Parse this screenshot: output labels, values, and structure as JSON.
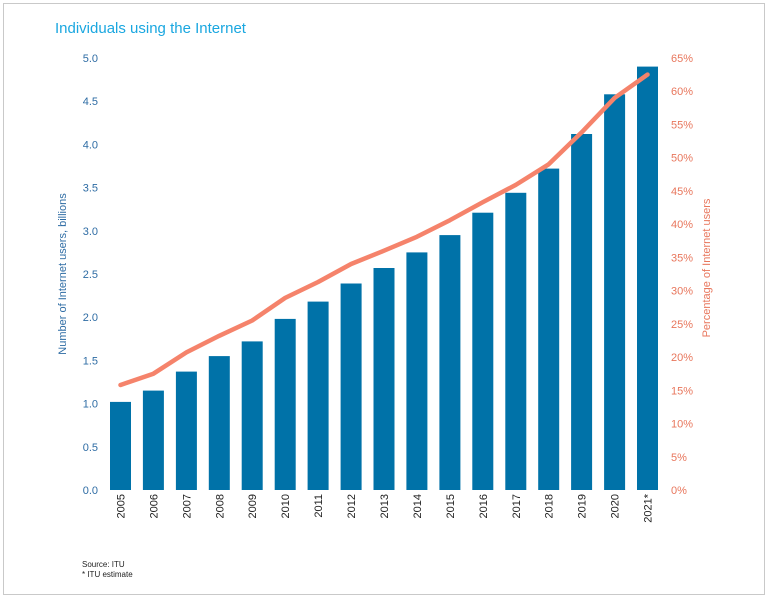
{
  "chart_data": {
    "type": "bar+line",
    "title": "Individuals using the Internet",
    "categories": [
      "2005",
      "2006",
      "2007",
      "2008",
      "2009",
      "2010",
      "2011",
      "2012",
      "2013",
      "2014",
      "2015",
      "2016",
      "2017",
      "2018",
      "2019",
      "2020",
      "2021*"
    ],
    "series": [
      {
        "name": "Number of Internet users, billions",
        "type": "bar",
        "axis": "left",
        "color": "#0072a8",
        "values": [
          1.02,
          1.15,
          1.37,
          1.55,
          1.72,
          1.98,
          2.18,
          2.39,
          2.57,
          2.75,
          2.95,
          3.21,
          3.44,
          3.72,
          4.12,
          4.58,
          4.9
        ]
      },
      {
        "name": "Percentage of Internet users",
        "type": "line",
        "axis": "right",
        "color": "#f5836b",
        "values": [
          15.8,
          17.5,
          20.7,
          23.2,
          25.5,
          28.9,
          31.3,
          34.0,
          36.0,
          38.1,
          40.6,
          43.3,
          45.9,
          49.0,
          53.8,
          59.0,
          62.5
        ]
      }
    ],
    "ylabel_left": "Number of Internet users, billions",
    "ylabel_right": "Percentage of Internet users",
    "ylim_left": [
      0,
      5
    ],
    "ylim_right": [
      0,
      65
    ],
    "yticks_left": [
      "0.0",
      "0.5",
      "1.0",
      "1.5",
      "2.0",
      "2.5",
      "3.0",
      "3.5",
      "4.0",
      "4.5",
      "5.0"
    ],
    "yticks_right": [
      "0%",
      "5%",
      "10%",
      "15%",
      "20%",
      "25%",
      "30%",
      "35%",
      "40%",
      "45%",
      "50%",
      "55%",
      "60%",
      "65%"
    ],
    "grid": false,
    "legend": "none",
    "axis_colors": {
      "left": "#2e6ca4",
      "right": "#e8765c"
    }
  },
  "notes": {
    "source": "Source: ITU",
    "estimate": "* ITU estimate"
  }
}
